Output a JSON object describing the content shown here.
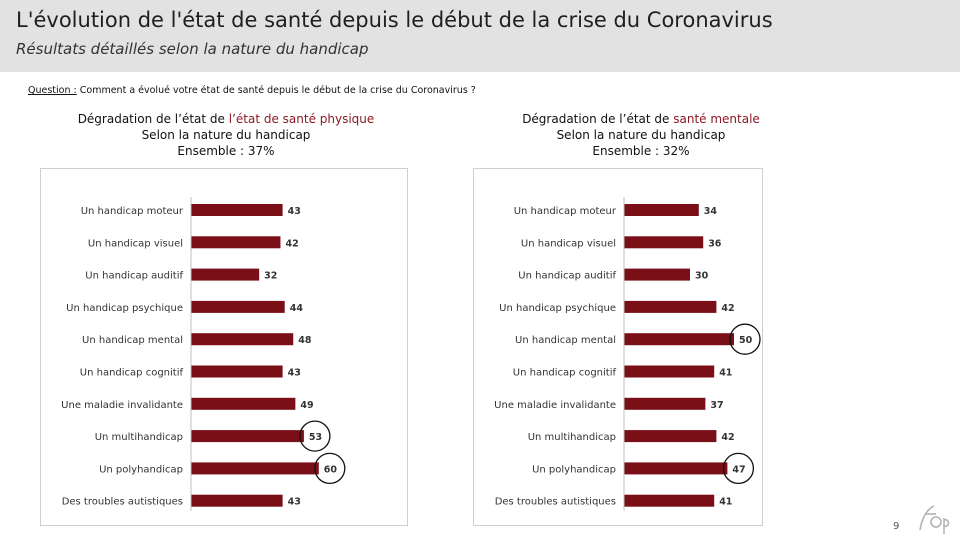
{
  "header": {
    "title": "L'évolution de l'état de santé depuis le début de la crise du Coronavirus",
    "subtitle": "Résultats détaillés selon la nature du handicap"
  },
  "question": {
    "label": "Question :",
    "text": "Comment a évolué votre état de santé depuis le début de la crise du Coronavirus ?"
  },
  "page_number": "9",
  "colors": {
    "bar": "#7a0f17",
    "highlight": "#8c1a24",
    "header_bg": "#e2e2e2"
  },
  "chart_data": [
    {
      "type": "bar",
      "orientation": "horizontal",
      "title_prefix": "Dégradation de l’état de ",
      "title_highlight": "l’état de santé physique",
      "subtitle": "Selon la nature du handicap",
      "overall": "Ensemble : 37%",
      "categories": [
        "Un handicap moteur",
        "Un handicap visuel",
        "Un handicap auditif",
        "Un handicap psychique",
        "Un handicap mental",
        "Un handicap cognitif",
        "Une maladie invalidante",
        "Un multihandicap",
        "Un polyhandicap",
        "Des troubles autistiques"
      ],
      "values": [
        43,
        42,
        32,
        44,
        48,
        43,
        49,
        53,
        60,
        43
      ],
      "circled": [
        false,
        false,
        false,
        false,
        false,
        false,
        false,
        true,
        true,
        false
      ],
      "xlim": [
        0,
        100
      ]
    },
    {
      "type": "bar",
      "orientation": "horizontal",
      "title_prefix": "Dégradation de l’état de ",
      "title_highlight": "santé mentale",
      "subtitle": "Selon la nature du handicap",
      "overall": "Ensemble : 32%",
      "categories": [
        "Un handicap moteur",
        "Un handicap visuel",
        "Un handicap auditif",
        "Un handicap psychique",
        "Un handicap mental",
        "Un handicap cognitif",
        "Une maladie invalidante",
        "Un multihandicap",
        "Un polyhandicap",
        "Des troubles autistiques"
      ],
      "values": [
        34,
        36,
        30,
        42,
        50,
        41,
        37,
        42,
        47,
        41
      ],
      "circled": [
        false,
        false,
        false,
        false,
        true,
        false,
        false,
        false,
        true,
        false
      ],
      "xlim": [
        0,
        60
      ]
    }
  ]
}
